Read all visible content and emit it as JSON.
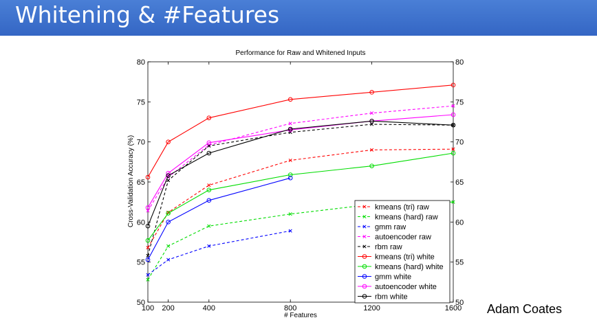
{
  "slide": {
    "title": "Whitening & #Features",
    "author": "Adam Coates",
    "header_color": "#3a6fcd"
  },
  "chart_data": {
    "type": "line",
    "title": "Performance for Raw and Whitened Inputs",
    "xlabel": "# Features",
    "ylabel": "Cross-Validation Accuracy (%)",
    "xlim": [
      100,
      1600
    ],
    "ylim": [
      50,
      80
    ],
    "xticks": [
      100,
      200,
      400,
      800,
      1200,
      1600
    ],
    "yticks": [
      50,
      55,
      60,
      65,
      70,
      75,
      80
    ],
    "grid": false,
    "legend_position": "bottom-right",
    "series": [
      {
        "name": "kmeans (tri) raw",
        "color": "#ff0000",
        "style": "dashed",
        "marker": "x",
        "x": [
          100,
          200,
          400,
          800,
          1200,
          1600
        ],
        "y": [
          56.8,
          61.2,
          64.6,
          67.7,
          69.0,
          69.1
        ]
      },
      {
        "name": "kmeans (hard) raw",
        "color": "#00dd00",
        "style": "dashed",
        "marker": "x",
        "x": [
          100,
          200,
          400,
          800,
          1200,
          1600
        ],
        "y": [
          52.8,
          57.0,
          59.5,
          61.0,
          62.2,
          62.5
        ]
      },
      {
        "name": "gmm raw",
        "color": "#0000ff",
        "style": "dashed",
        "marker": "x",
        "x": [
          100,
          200,
          400,
          800
        ],
        "y": [
          53.4,
          55.3,
          57.0,
          58.9
        ]
      },
      {
        "name": "autoencoder raw",
        "color": "#ff00ff",
        "style": "dashed",
        "marker": "x",
        "x": [
          100,
          200,
          400,
          800,
          1200,
          1600
        ],
        "y": [
          61.4,
          65.6,
          69.6,
          72.3,
          73.6,
          74.5
        ]
      },
      {
        "name": "rbm raw",
        "color": "#000000",
        "style": "dashed",
        "marker": "x",
        "x": [
          100,
          200,
          400,
          800,
          1200,
          1600
        ],
        "y": [
          55.8,
          65.2,
          69.5,
          71.2,
          72.2,
          72.1
        ]
      },
      {
        "name": "kmeans (tri) white",
        "color": "#ff0000",
        "style": "solid",
        "marker": "o",
        "x": [
          100,
          200,
          400,
          800,
          1200,
          1600
        ],
        "y": [
          65.6,
          70.0,
          73.0,
          75.3,
          76.2,
          77.1
        ]
      },
      {
        "name": "kmeans (hard) white",
        "color": "#00dd00",
        "style": "solid",
        "marker": "o",
        "x": [
          100,
          200,
          400,
          800,
          1200,
          1600
        ],
        "y": [
          57.7,
          61.1,
          64.0,
          65.9,
          67.0,
          68.6
        ]
      },
      {
        "name": "gmm white",
        "color": "#0000ff",
        "style": "solid",
        "marker": "o",
        "x": [
          100,
          200,
          400,
          800
        ],
        "y": [
          55.3,
          60.0,
          62.7,
          65.5
        ]
      },
      {
        "name": "autoencoder white",
        "color": "#ff00ff",
        "style": "solid",
        "marker": "o",
        "x": [
          100,
          200,
          400,
          800,
          1200,
          1600
        ],
        "y": [
          61.8,
          66.1,
          69.9,
          71.5,
          72.6,
          73.4
        ]
      },
      {
        "name": "rbm white",
        "color": "#000000",
        "style": "solid",
        "marker": "o",
        "x": [
          100,
          200,
          400,
          800,
          1200,
          1600
        ],
        "y": [
          59.5,
          65.8,
          68.6,
          71.6,
          72.6,
          72.1
        ]
      }
    ]
  }
}
